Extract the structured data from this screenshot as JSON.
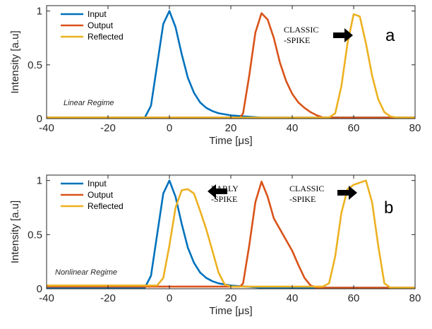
{
  "chart_data": [
    {
      "type": "line",
      "panel_label": "a",
      "regime": "Linear Regime",
      "xlabel": "Time [μs]",
      "ylabel": "Intensity [a.u]",
      "xlim": [
        -40,
        80
      ],
      "ylim": [
        0,
        1.05
      ],
      "xticks": [
        -40,
        -20,
        0,
        20,
        40,
        60,
        80
      ],
      "yticks": [
        0,
        0.5,
        1
      ],
      "legend": "top-left",
      "annotations": [
        {
          "lines": [
            "CLASSIC",
            "-SPIKE"
          ],
          "arrow": "right",
          "points_to": [
            59,
            0.85
          ]
        }
      ],
      "series": [
        {
          "name": "Input",
          "color": "#0072BD",
          "x": [
            -40,
            -8,
            -6,
            -4,
            -2,
            0,
            2,
            4,
            6,
            8,
            10,
            12,
            14,
            16,
            20,
            25,
            30,
            80
          ],
          "y": [
            0.01,
            0.01,
            0.12,
            0.5,
            0.88,
            1.0,
            0.85,
            0.6,
            0.38,
            0.24,
            0.15,
            0.1,
            0.07,
            0.05,
            0.03,
            0.02,
            0.01,
            0.01
          ]
        },
        {
          "name": "Output",
          "color": "#D95319",
          "x": [
            -40,
            23,
            24,
            26,
            28,
            30,
            32,
            34,
            36,
            38,
            40,
            42,
            44,
            46,
            48,
            50,
            80
          ],
          "y": [
            0.01,
            0.01,
            0.05,
            0.4,
            0.8,
            0.98,
            0.92,
            0.75,
            0.52,
            0.35,
            0.23,
            0.15,
            0.1,
            0.06,
            0.03,
            0.01,
            0.01
          ]
        },
        {
          "name": "Reflected",
          "color": "#EDB120",
          "x": [
            -40,
            52,
            54,
            56,
            58,
            60,
            62,
            64,
            66,
            68,
            70,
            72,
            74,
            80
          ],
          "y": [
            0.01,
            0.01,
            0.05,
            0.3,
            0.7,
            0.97,
            0.95,
            0.7,
            0.4,
            0.18,
            0.06,
            0.02,
            0.01,
            0.01
          ]
        }
      ]
    },
    {
      "type": "line",
      "panel_label": "b",
      "regime": "Nonlinear Regime",
      "xlabel": "Time [μs]",
      "ylabel": "Intensity [a.u]",
      "xlim": [
        -40,
        80
      ],
      "ylim": [
        0,
        1.05
      ],
      "xticks": [
        -40,
        -20,
        0,
        20,
        40,
        60,
        80
      ],
      "yticks": [
        0,
        0.5,
        1
      ],
      "legend": "top-left",
      "annotations": [
        {
          "lines": [
            "EARLY",
            "-SPIKE"
          ],
          "arrow": "left",
          "points_to": [
            5,
            0.92
          ]
        },
        {
          "lines": [
            "CLASSIC",
            "-SPIKE"
          ],
          "arrow": "right",
          "points_to": [
            61,
            0.95
          ]
        }
      ],
      "series": [
        {
          "name": "Input",
          "color": "#0072BD",
          "x": [
            -40,
            -8,
            -6,
            -4,
            -2,
            0,
            2,
            4,
            6,
            8,
            10,
            12,
            14,
            16,
            20,
            25,
            30,
            80
          ],
          "y": [
            0.01,
            0.01,
            0.12,
            0.5,
            0.88,
            1.0,
            0.85,
            0.6,
            0.38,
            0.24,
            0.15,
            0.1,
            0.07,
            0.05,
            0.03,
            0.02,
            0.01,
            0.01
          ]
        },
        {
          "name": "Output",
          "color": "#D95319",
          "x": [
            -40,
            23,
            24,
            26,
            28,
            30,
            32,
            34,
            36,
            38,
            40,
            42,
            44,
            46,
            48,
            80
          ],
          "y": [
            0.02,
            0.02,
            0.05,
            0.4,
            0.8,
            0.99,
            0.85,
            0.65,
            0.55,
            0.45,
            0.35,
            0.22,
            0.1,
            0.03,
            0.01,
            0.01
          ]
        },
        {
          "name": "Reflected",
          "color": "#EDB120",
          "x": [
            -40,
            -4,
            -2,
            0,
            2,
            4,
            6,
            8,
            10,
            12,
            14,
            16,
            18,
            20,
            50,
            52,
            54,
            56,
            58,
            60,
            62,
            64,
            66,
            68,
            70,
            72,
            80
          ],
          "y": [
            0.03,
            0.03,
            0.1,
            0.4,
            0.75,
            0.91,
            0.92,
            0.88,
            0.72,
            0.55,
            0.35,
            0.15,
            0.04,
            0.02,
            0.02,
            0.05,
            0.3,
            0.7,
            0.92,
            0.96,
            0.98,
            1.0,
            0.8,
            0.4,
            0.05,
            0.01,
            0.01
          ]
        }
      ]
    }
  ]
}
